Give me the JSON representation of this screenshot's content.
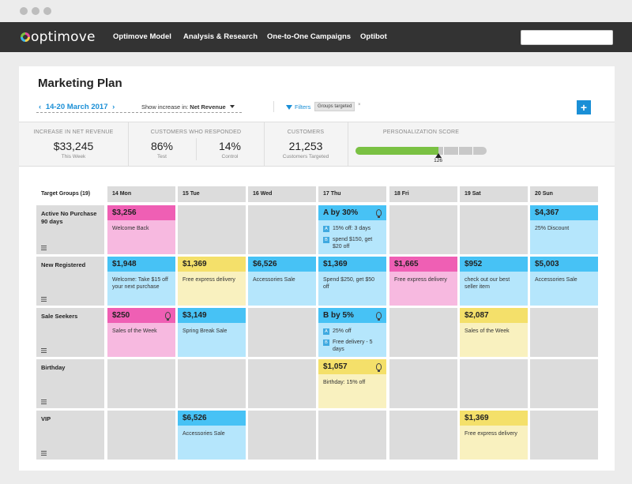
{
  "app": {
    "logo_text": "optimove"
  },
  "nav": {
    "items": [
      "Optimove Model",
      "Analysis & Research",
      "One-to-One Campaigns",
      "Optibot"
    ],
    "search_placeholder": ""
  },
  "page": {
    "title": "Marketing Plan",
    "date_range": "14-20 March 2017",
    "prev_icon": "chevron-left-icon",
    "next_icon": "chevron-right-icon",
    "show_increase_label": "Show increase in:",
    "show_increase_value": "Net Revenue",
    "filters_label": "Filters",
    "filter_chip": "Groups targeted",
    "add_button": "+"
  },
  "stats": {
    "net_revenue": {
      "label": "INCREASE IN NET REVENUE",
      "value": "$33,245",
      "sub": "This Week"
    },
    "responded": {
      "label": "CUSTOMERS WHO RESPONDED",
      "test_value": "86%",
      "test_sub": "Test",
      "control_value": "14%",
      "control_sub": "Control"
    },
    "customers": {
      "label": "CUSTOMERS",
      "value": "21,253",
      "sub": "Customers Targeted"
    },
    "personalization": {
      "label": "PERSONALIZATION SCORE",
      "score": "126",
      "fraction": 0.63,
      "accent": "#7ac143"
    }
  },
  "grid": {
    "target_groups_label": "Target Groups (19)",
    "days": [
      "14 Mon",
      "15 Tue",
      "16 Wed",
      "17 Thu",
      "18 Fri",
      "19 Sat",
      "20 Sun"
    ],
    "groups": [
      {
        "name": "Active No Purchase 90 days"
      },
      {
        "name": "New Registered"
      },
      {
        "name": "Sale Seekers"
      },
      {
        "name": "Birthday"
      },
      {
        "name": "VIP"
      }
    ],
    "campaigns": {
      "r0d0": {
        "amount": "$3,256",
        "desc": "Welcome Back"
      },
      "r0d3": {
        "amount": "A by 30%",
        "a_label": "A",
        "a_text": "15% off: 3 days",
        "b_label": "B",
        "b_text": "spend $150, get $20 off"
      },
      "r0d6": {
        "amount": "$4,367",
        "desc": "25% Discount"
      },
      "r1d0": {
        "amount": "$1,948",
        "desc": "Welcome: Take $15 off your next purchase"
      },
      "r1d1": {
        "amount": "$1,369",
        "desc": "Free express delivery"
      },
      "r1d2": {
        "amount": "$6,526",
        "desc": "Accessories Sale"
      },
      "r1d3": {
        "amount": "$1,369",
        "desc": "Spend $250, get $50 off"
      },
      "r1d4": {
        "amount": "$1,665",
        "desc": "Free express delivery"
      },
      "r1d5": {
        "amount": "$952",
        "desc": "check out our best seller item"
      },
      "r1d6": {
        "amount": "$5,003",
        "desc": "Accessories Sale"
      },
      "r2d0": {
        "amount": "$250",
        "desc": "Sales of the Week"
      },
      "r2d1": {
        "amount": "$3,149",
        "desc": "Spring Break Sale"
      },
      "r2d3": {
        "amount": "B by 5%",
        "a_label": "A",
        "a_text": "25% off",
        "b_label": "B",
        "b_text": "Free delivery - 5 days"
      },
      "r2d5": {
        "amount": "$2,087",
        "desc": "Sales of the Week"
      },
      "r3d3": {
        "amount": "$1,057",
        "desc": "Birthday: 15% off"
      },
      "r4d1": {
        "amount": "$6,526",
        "desc": "Accessories Sale"
      },
      "r4d5": {
        "amount": "$1,369",
        "desc": "Free express delivery"
      }
    }
  },
  "colors": {
    "pink": "#ef5fb4",
    "blue": "#47c2f5",
    "yellow": "#f4e06a",
    "nav_bg": "#333333",
    "link": "#1a8fd6"
  }
}
